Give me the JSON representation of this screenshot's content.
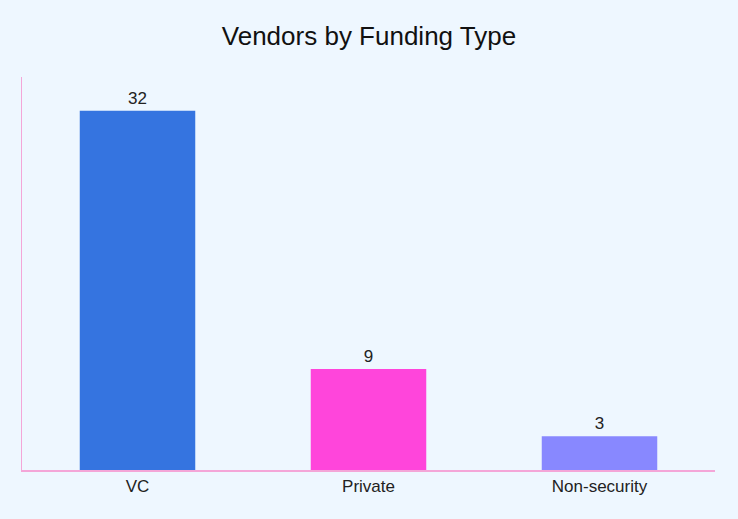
{
  "chart_data": {
    "type": "bar",
    "title": "Vendors by Funding Type",
    "categories": [
      "VC",
      "Private",
      "Non-security"
    ],
    "values": [
      32,
      9,
      3
    ],
    "colors": [
      "#3574E0",
      "#FF45DB",
      "#8888FF"
    ],
    "ylim": [
      0,
      35
    ],
    "data_labels": true,
    "tick_labels": "x",
    "grid": false
  }
}
